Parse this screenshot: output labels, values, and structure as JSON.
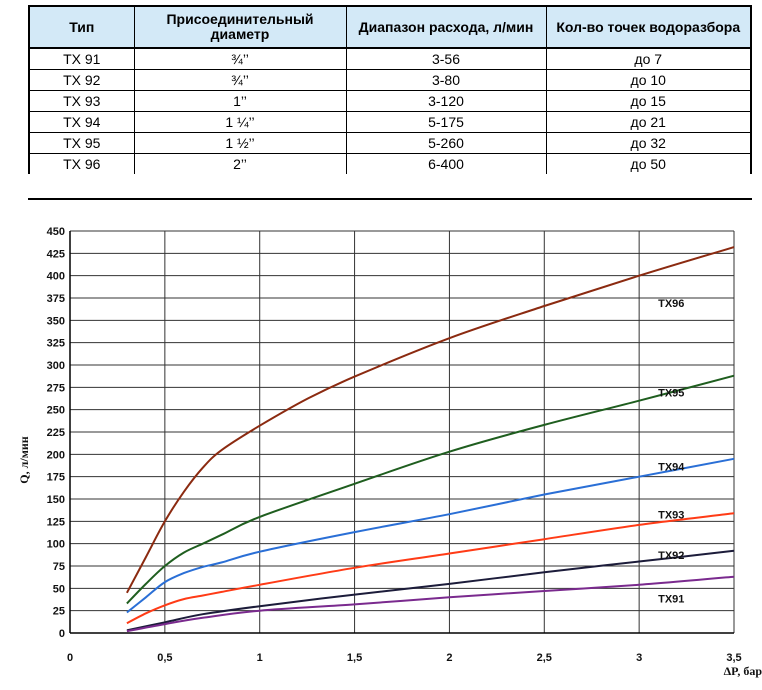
{
  "table": {
    "headers": [
      "Тип",
      "Присоединительный диаметр",
      "Диапазон расхода, л/мин",
      "Кол-во точек водоразбора"
    ],
    "rows": [
      [
        "TX 91",
        "¾’’",
        "3-56",
        "до  7"
      ],
      [
        "TX 92",
        "¾’’",
        "3-80",
        "до  10"
      ],
      [
        "TX 93",
        "1’’",
        "3-120",
        "до  15"
      ],
      [
        "TX 94",
        "1 ¼’’",
        "5-175",
        "до  21"
      ],
      [
        "TX 95",
        "1 ½’’",
        "5-260",
        "до  32"
      ],
      [
        "TX 96",
        "2’’",
        "6-400",
        "до  50"
      ]
    ]
  },
  "chart_data": {
    "type": "line",
    "xlabel": "ΔP, бар",
    "ylabel": "Q, л/мин",
    "xlim": [
      0,
      3.5
    ],
    "ylim": [
      0,
      450
    ],
    "xticks": [
      0,
      0.5,
      1,
      1.5,
      2,
      2.5,
      3,
      3.5
    ],
    "xtick_labels": [
      "0",
      "0,5",
      "1",
      "1,5",
      "2",
      "2,5",
      "3",
      "3,5"
    ],
    "yticks": [
      0,
      25,
      50,
      75,
      100,
      125,
      150,
      175,
      200,
      225,
      250,
      275,
      300,
      325,
      350,
      375,
      400,
      425,
      450
    ],
    "grid": true,
    "series": [
      {
        "name": "TX96",
        "color": "#8b2a10",
        "x": [
          0.3,
          0.4,
          0.5,
          0.6,
          0.7,
          0.8,
          1.0,
          1.25,
          1.5,
          2.0,
          2.5,
          3.0,
          3.5
        ],
        "y": [
          45,
          85,
          125,
          158,
          185,
          205,
          232,
          262,
          287,
          330,
          366,
          400,
          432
        ],
        "label_at": [
          3.1,
          365
        ]
      },
      {
        "name": "TX95",
        "color": "#1f5e1f",
        "x": [
          0.3,
          0.4,
          0.5,
          0.6,
          0.7,
          0.8,
          1.0,
          1.5,
          2.0,
          2.5,
          3.0,
          3.5
        ],
        "y": [
          33,
          55,
          75,
          90,
          100,
          110,
          130,
          167,
          203,
          233,
          260,
          288
        ],
        "label_at": [
          3.1,
          265
        ]
      },
      {
        "name": "TX94",
        "color": "#2a6fd6",
        "x": [
          0.3,
          0.4,
          0.5,
          0.6,
          0.7,
          0.8,
          1.0,
          1.5,
          2.0,
          2.5,
          3.0,
          3.5
        ],
        "y": [
          23,
          40,
          57,
          67,
          74,
          79,
          91,
          113,
          133,
          155,
          175,
          195
        ],
        "label_at": [
          3.1,
          182
        ]
      },
      {
        "name": "TX93",
        "color": "#ff3b16",
        "x": [
          0.3,
          0.4,
          0.5,
          0.6,
          0.7,
          0.8,
          1.0,
          1.5,
          2.0,
          2.5,
          3.0,
          3.5
        ],
        "y": [
          11,
          22,
          31,
          38,
          42,
          46,
          54,
          73,
          89,
          105,
          121,
          134
        ],
        "label_at": [
          3.1,
          128
        ]
      },
      {
        "name": "TX92",
        "color": "#1c1c3a",
        "x": [
          0.3,
          0.5,
          0.7,
          1.0,
          1.5,
          2.0,
          2.5,
          3.0,
          3.5
        ],
        "y": [
          3,
          12,
          21,
          30,
          43,
          55,
          68,
          80,
          92
        ],
        "label_at": [
          3.1,
          83
        ]
      },
      {
        "name": "TX91",
        "color": "#7a2a8e",
        "x": [
          0.3,
          0.5,
          0.7,
          1.0,
          1.5,
          2.0,
          2.5,
          3.0,
          3.5
        ],
        "y": [
          2,
          10,
          17,
          25,
          32,
          40,
          47,
          54,
          63
        ],
        "label_at": [
          3.1,
          34
        ]
      }
    ]
  }
}
